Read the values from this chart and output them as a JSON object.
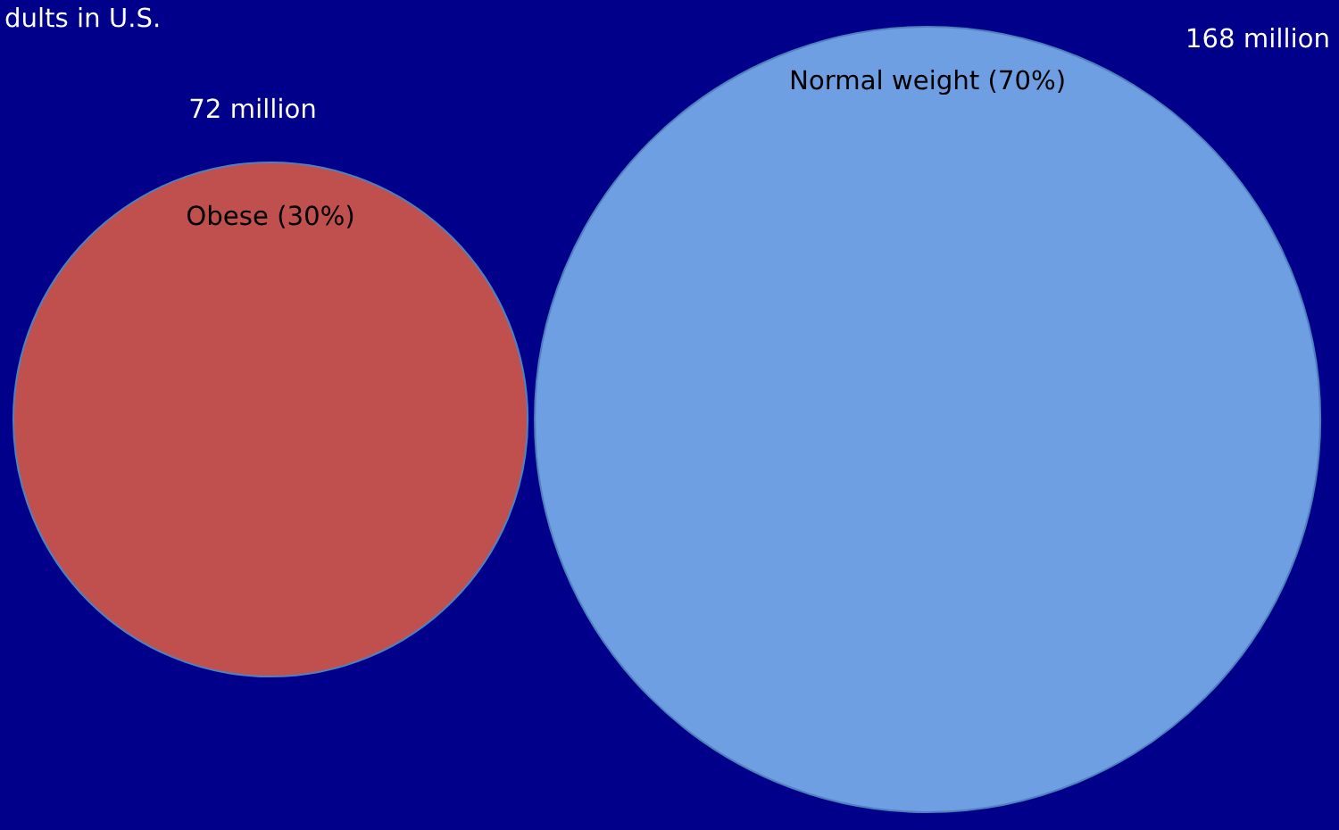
{
  "chart_data": {
    "type": "other",
    "title": "dults in U.S.",
    "categories": [
      "Obese (30%)",
      "Normal weight (70%)"
    ],
    "values": [
      72,
      168
    ],
    "value_labels": [
      "72 million",
      "168 million"
    ],
    "colors": [
      "#c0504d",
      "#6f9fe3"
    ]
  }
}
